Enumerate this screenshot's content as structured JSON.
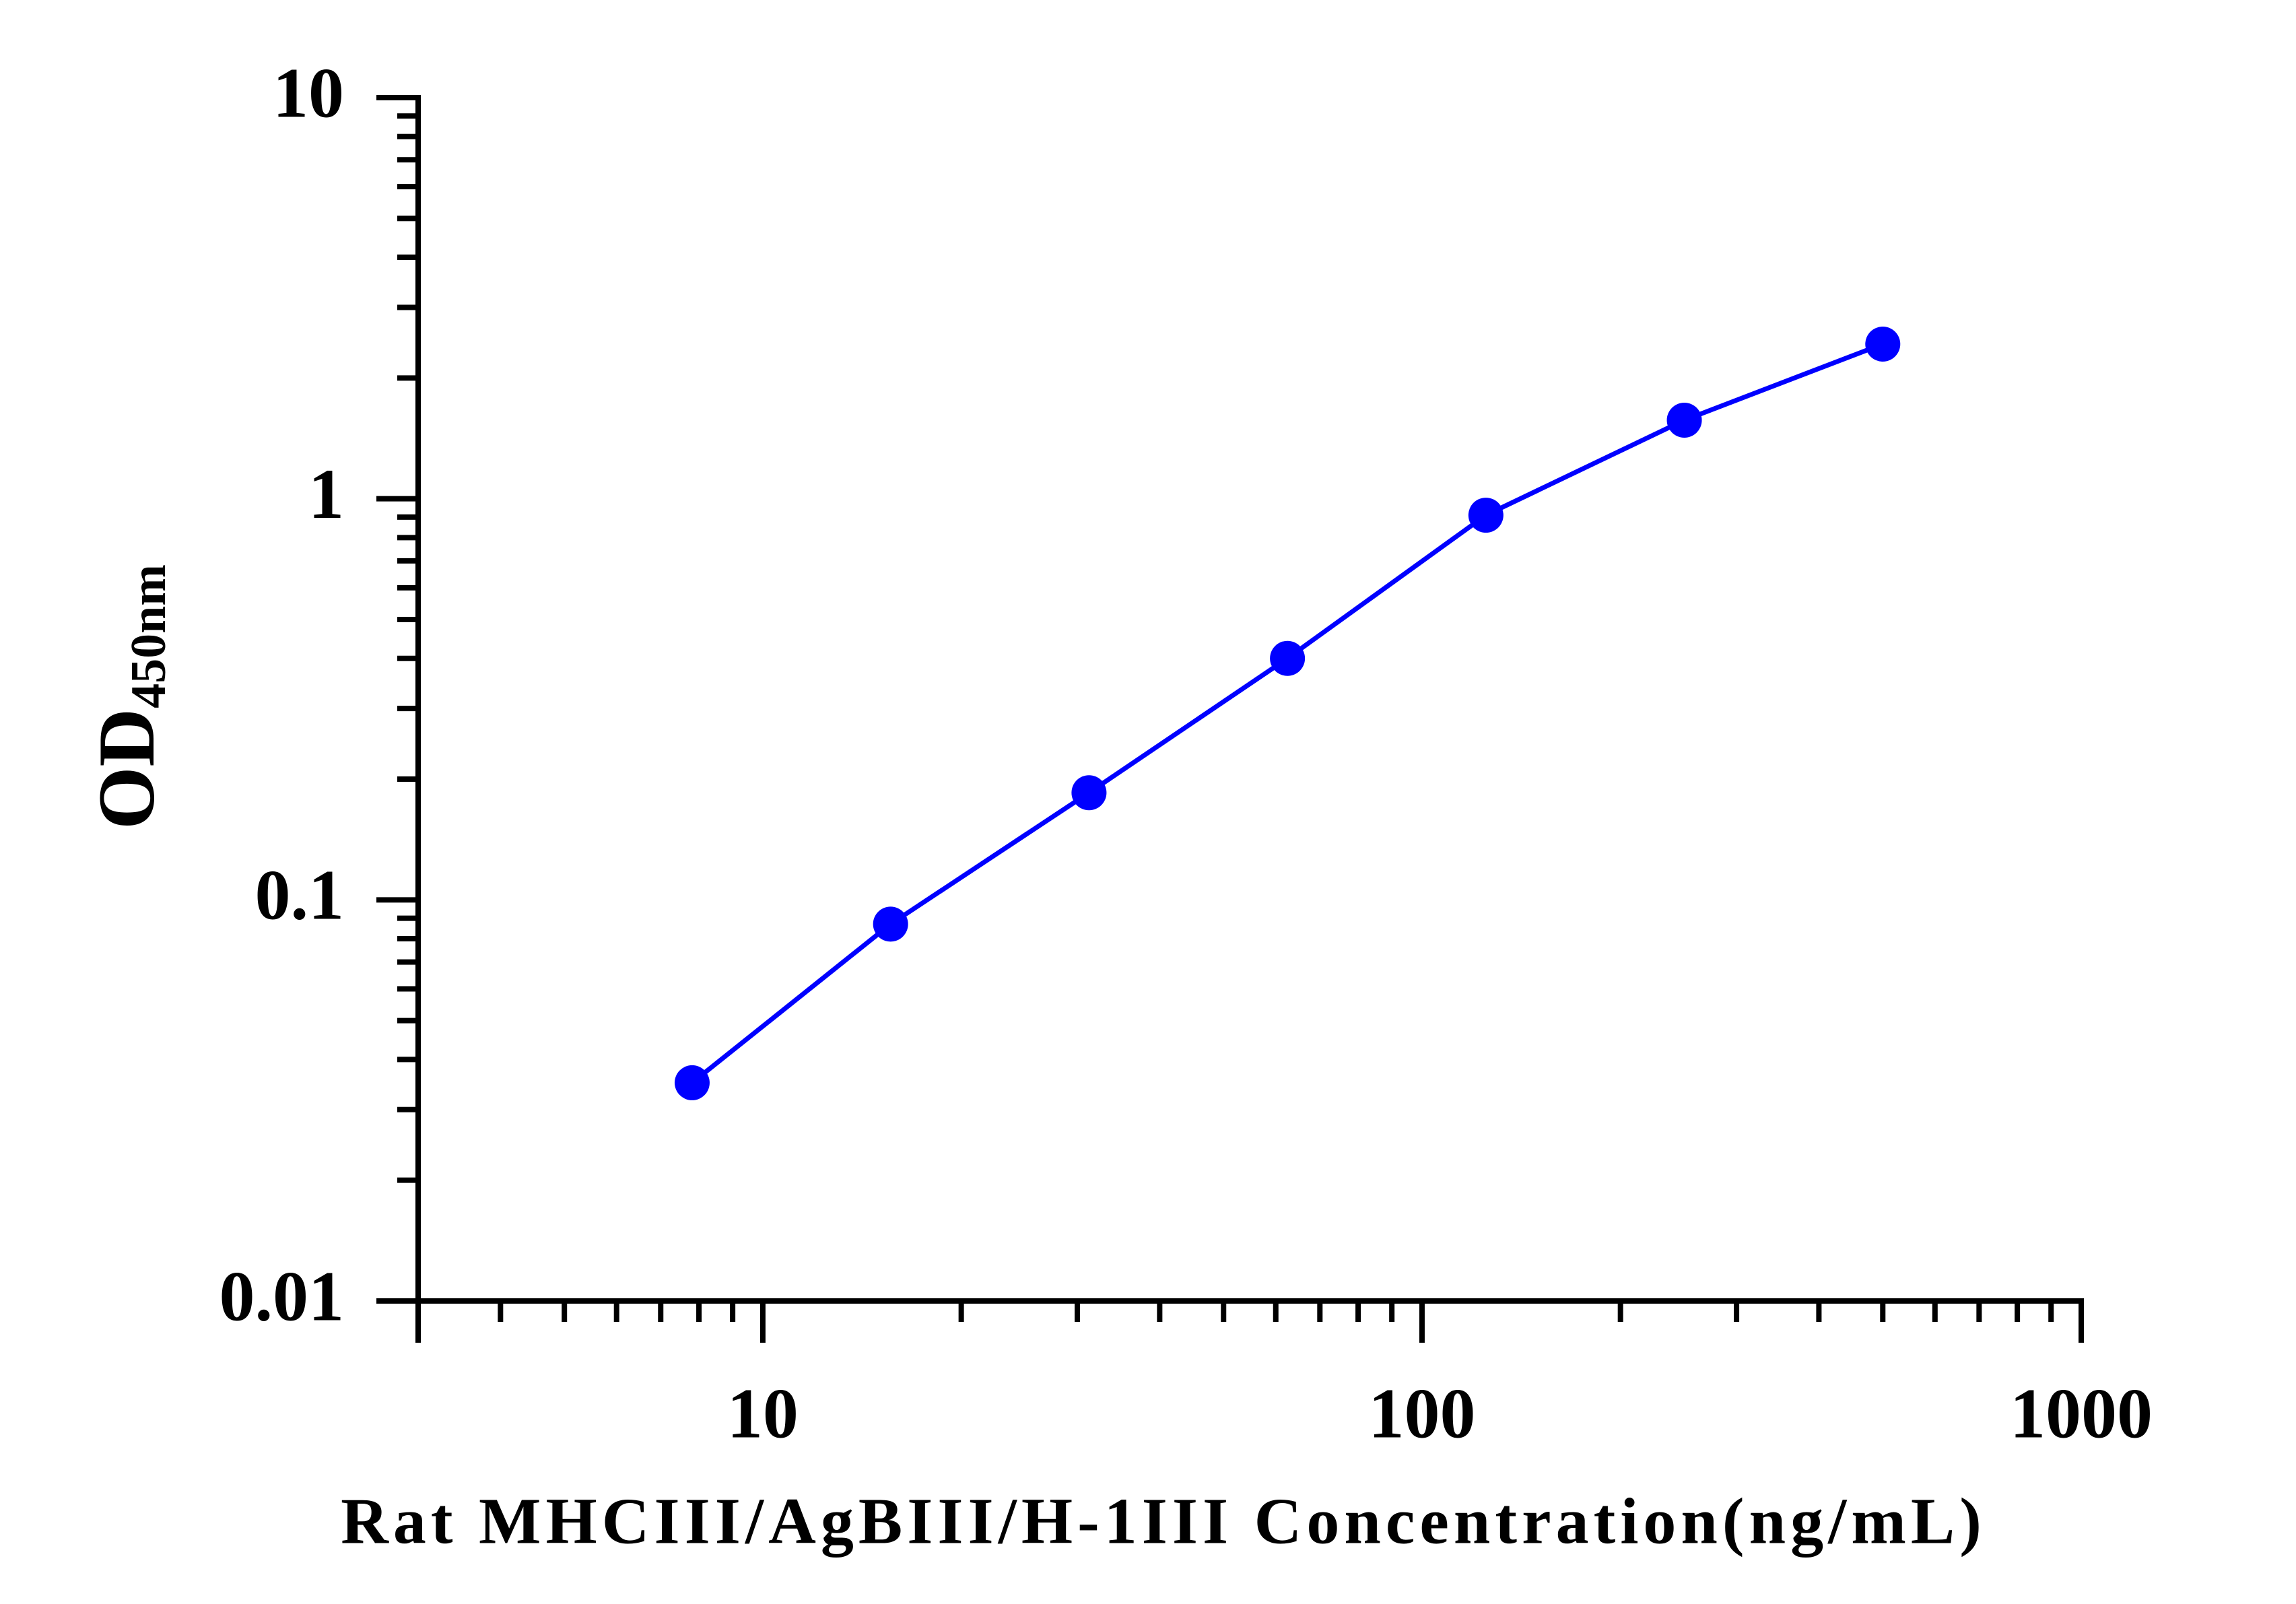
{
  "chart_data": {
    "type": "line",
    "xlabel": "Rat MHCIII/AgBIII/H-1III Concentration(ng/mL)",
    "ylabel": "OD",
    "ylabel_subscript": "450nm",
    "x": [
      7.8125,
      15.625,
      31.25,
      62.5,
      125,
      250,
      500
    ],
    "series": [
      {
        "color": "#0000ff",
        "values": [
          0.035,
          0.087,
          0.185,
          0.4,
          0.91,
          1.57,
          2.43
        ]
      }
    ],
    "xlim": [
      3,
      1000
    ],
    "ylim": [
      0.01,
      10
    ],
    "xticks": [
      10,
      100,
      1000
    ],
    "yticks": [
      0.01,
      0.1,
      1,
      10
    ],
    "xscale": "log",
    "yscale": "log",
    "minor_ticks": true,
    "markers": true,
    "grid": false
  }
}
